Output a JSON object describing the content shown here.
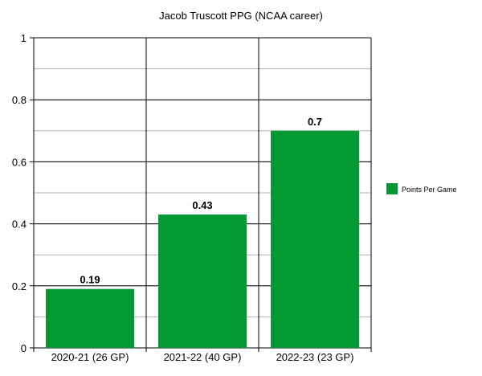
{
  "chart_data": {
    "type": "bar",
    "title": "Jacob Truscott PPG (NCAA career)",
    "categories": [
      "2020-21 (26 GP)",
      "2021-22 (40 GP)",
      "2022-23 (23 GP)"
    ],
    "series": [
      {
        "name": "Points Per Game",
        "values": [
          0.19,
          0.43,
          0.7
        ],
        "color": "#039a34"
      }
    ],
    "data_labels": [
      "0.19",
      "0.43",
      "0.7"
    ],
    "ylim": [
      0,
      1
    ],
    "yticks": [
      "0",
      "0.2",
      "0.4",
      "0.6",
      "0.8",
      "1"
    ],
    "minor_grid_step": 0.1,
    "grid": true,
    "legend": "right",
    "xlabel": "",
    "ylabel": ""
  }
}
